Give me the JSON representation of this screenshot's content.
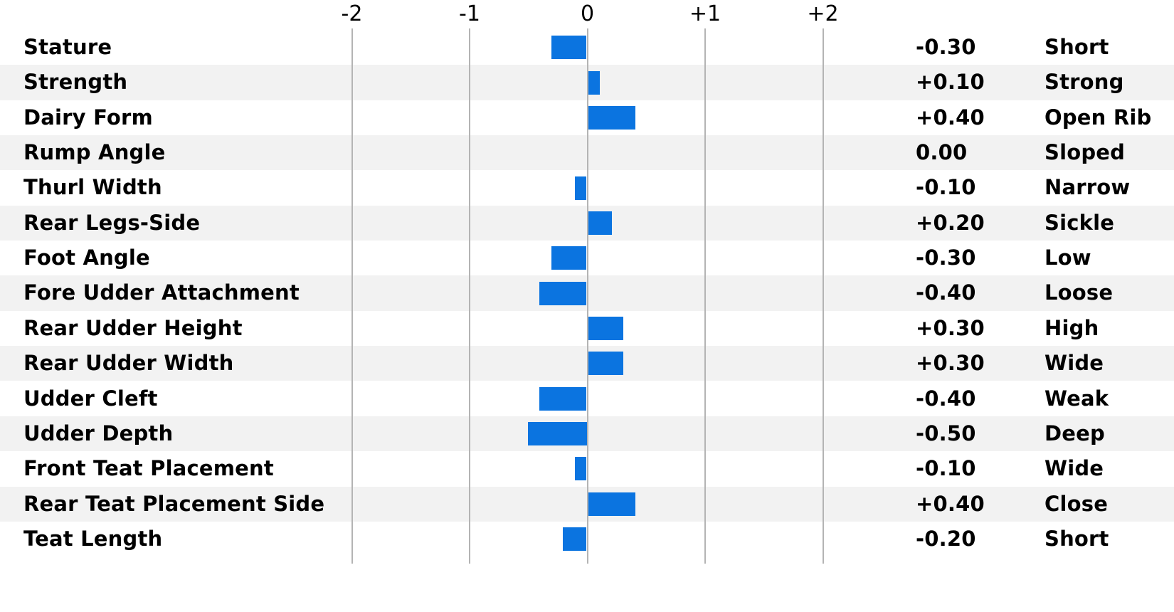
{
  "chart_data": {
    "type": "bar",
    "orientation": "horizontal",
    "title": "",
    "xlabel": "",
    "ylabel": "",
    "xlim": [
      -2.4,
      2.6
    ],
    "grid": true,
    "legend": "none",
    "axis_ticks": [
      {
        "label": "-2",
        "value": -2
      },
      {
        "label": "-1",
        "value": -1
      },
      {
        "label": "0",
        "value": 0
      },
      {
        "label": "+1",
        "value": 1
      },
      {
        "label": "+2",
        "value": 2
      }
    ],
    "rows": [
      {
        "trait": "Stature",
        "value": -0.3,
        "value_label": "-0.30",
        "descriptor": "Short"
      },
      {
        "trait": "Strength",
        "value": 0.1,
        "value_label": "+0.10",
        "descriptor": "Strong"
      },
      {
        "trait": "Dairy Form",
        "value": 0.4,
        "value_label": "+0.40",
        "descriptor": "Open Rib"
      },
      {
        "trait": "Rump Angle",
        "value": 0.0,
        "value_label": "0.00",
        "descriptor": "Sloped"
      },
      {
        "trait": "Thurl Width",
        "value": -0.1,
        "value_label": "-0.10",
        "descriptor": "Narrow"
      },
      {
        "trait": "Rear Legs-Side",
        "value": 0.2,
        "value_label": "+0.20",
        "descriptor": "Sickle"
      },
      {
        "trait": "Foot Angle",
        "value": -0.3,
        "value_label": "-0.30",
        "descriptor": "Low"
      },
      {
        "trait": "Fore Udder Attachment",
        "value": -0.4,
        "value_label": "-0.40",
        "descriptor": "Loose"
      },
      {
        "trait": "Rear Udder Height",
        "value": 0.3,
        "value_label": "+0.30",
        "descriptor": "High"
      },
      {
        "trait": "Rear Udder Width",
        "value": 0.3,
        "value_label": "+0.30",
        "descriptor": "Wide"
      },
      {
        "trait": "Udder Cleft",
        "value": -0.4,
        "value_label": "-0.40",
        "descriptor": "Weak"
      },
      {
        "trait": "Udder Depth",
        "value": -0.5,
        "value_label": "-0.50",
        "descriptor": "Deep"
      },
      {
        "trait": "Front Teat Placement",
        "value": -0.1,
        "value_label": "-0.10",
        "descriptor": "Wide"
      },
      {
        "trait": "Rear Teat Placement Side",
        "value": 0.4,
        "value_label": "+0.40",
        "descriptor": "Close"
      },
      {
        "trait": "Teat Length",
        "value": -0.2,
        "value_label": "-0.20",
        "descriptor": "Short"
      }
    ],
    "colors": {
      "bar": "#0b74e0",
      "row_band": "#f2f2f2",
      "gridline": "#b4b4b4",
      "text": "#000000",
      "background": "#ffffff"
    }
  }
}
